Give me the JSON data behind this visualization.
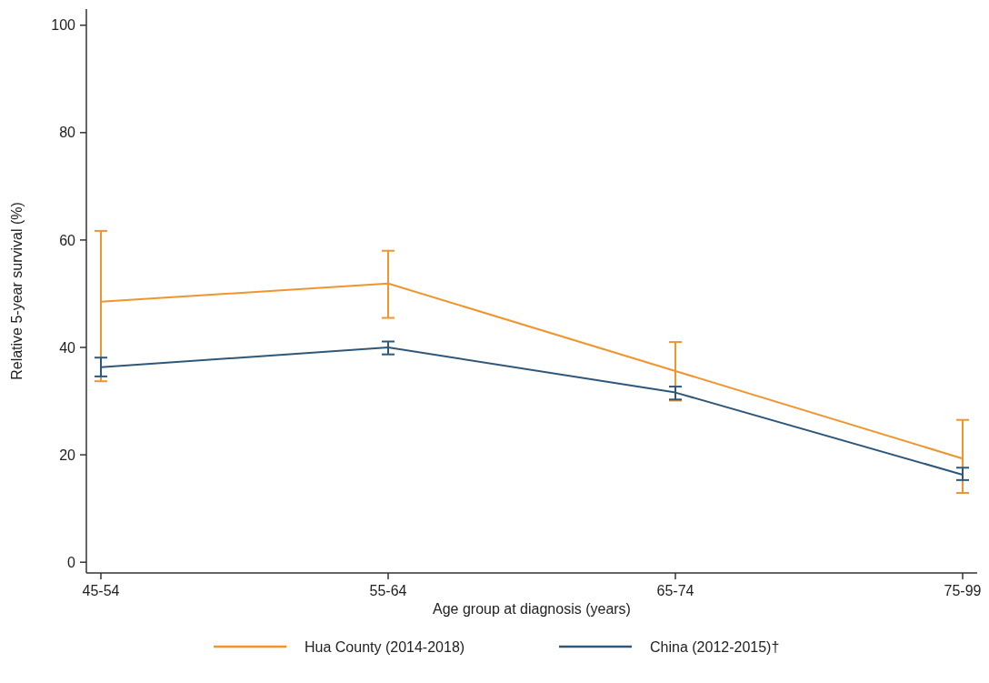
{
  "chart_data": {
    "type": "line",
    "xlabel": "Age group at diagnosis (years)",
    "ylabel": "Relative 5-year survival (%)",
    "categories": [
      "45-54",
      "55-64",
      "65-74",
      "75-99"
    ],
    "series": [
      {
        "name": "Hua County (2014-2018)",
        "color": "#f0952e",
        "values": [
          48.5,
          51.9,
          35.6,
          19.3
        ],
        "errors": [
          [
            33.7,
            61.7
          ],
          [
            45.5,
            58.0
          ],
          [
            30.1,
            41.0
          ],
          [
            12.9,
            26.5
          ]
        ]
      },
      {
        "name": "China (2012-2015)†",
        "color": "#2f5878",
        "values": [
          36.3,
          40.0,
          31.6,
          16.3
        ],
        "errors": [
          [
            34.6,
            38.1
          ],
          [
            38.7,
            41.1
          ],
          [
            30.3,
            32.7
          ],
          [
            15.3,
            17.6
          ]
        ]
      }
    ],
    "ylim": [
      -2,
      103
    ],
    "yticks": [
      0,
      20,
      40,
      60,
      80,
      100
    ],
    "legend": "bottom",
    "marker": "none",
    "line_style": "solid"
  }
}
